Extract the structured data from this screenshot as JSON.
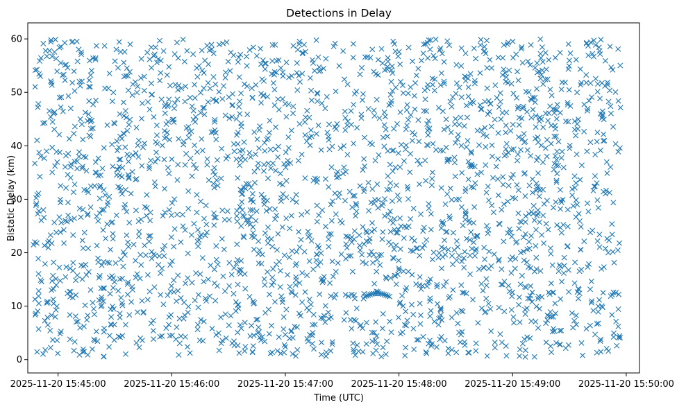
{
  "chart_data": {
    "type": "scatter",
    "title": "Detections in Delay",
    "xlabel": "Time (UTC)",
    "ylabel": "Bistatic Delay (km)",
    "marker": "x",
    "color": "#1f77b4",
    "grid": false,
    "x_type": "datetime",
    "xlim": [
      "2025-11-20 15:44:44",
      "2025-11-20 15:50:07"
    ],
    "ylim": [
      -2.5,
      63
    ],
    "x_ticks": [
      "2025-11-20 15:45:00",
      "2025-11-20 15:46:00",
      "2025-11-20 15:47:00",
      "2025-11-20 15:48:00",
      "2025-11-20 15:49:00",
      "2025-11-20 15:50:00"
    ],
    "y_ticks": [
      0,
      10,
      20,
      30,
      40,
      50,
      60
    ],
    "time_range": [
      "2025-11-20 15:44:47",
      "2025-11-20 15:49:57"
    ],
    "delay_range": [
      0.5,
      60
    ],
    "point_count": 2400,
    "seed": 20251120,
    "features": [
      {
        "kind": "arc",
        "t_start": "2025-11-20 15:47:42",
        "t_end": "2025-11-20 15:47:55",
        "delay_start": 11.8,
        "delay_peak": 12.4,
        "delay_end": 11.8
      },
      {
        "kind": "ring",
        "t_center": "2025-11-20 15:46:40",
        "delay_center": 29.5,
        "t_radius_s": 3,
        "delay_radius": 3.5
      }
    ]
  }
}
